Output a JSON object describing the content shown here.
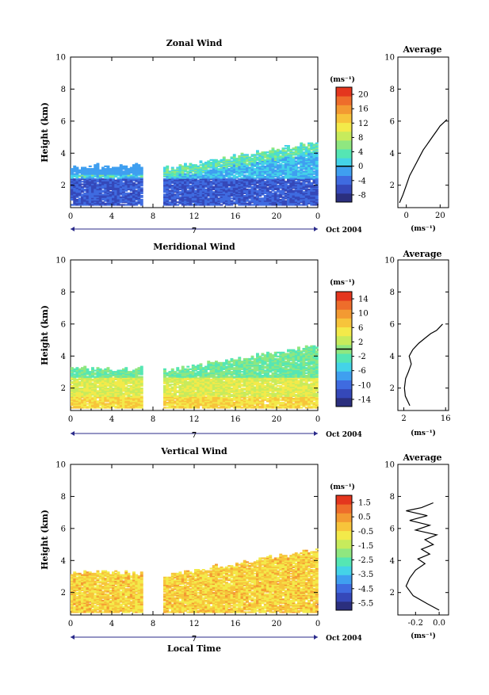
{
  "figure": {
    "xlabel": "Local Time",
    "date_label": "Oct 2004",
    "day_label": "7",
    "x_ticks": [
      "0",
      "4",
      "8",
      "12",
      "16",
      "20",
      "0"
    ],
    "y_ticks": [
      "2",
      "4",
      "6",
      "8",
      "10"
    ],
    "ylabel": "Height (km)",
    "unit_label": "(ms⁻¹)",
    "average_title": "Average"
  },
  "chart_data": [
    {
      "type": "heatmap",
      "title": "Zonal Wind",
      "xlabel": "",
      "ylabel": "Height (km)",
      "xlim": [
        0,
        24
      ],
      "ylim": [
        0.6,
        10
      ],
      "colorbar": {
        "ticks": [
          "20",
          "16",
          "12",
          "8",
          "4",
          "0",
          "-4",
          "-8"
        ],
        "range": [
          -10,
          22
        ],
        "zero_line": 0
      },
      "average_profile": {
        "title": "Average",
        "xlim": [
          -5,
          25
        ],
        "x_ticks": [
          "0",
          "20"
        ],
        "y_ticks": [
          "2",
          "4",
          "6",
          "8",
          "10"
        ],
        "x": [
          -4,
          -2,
          0,
          2,
          4,
          6,
          8,
          10,
          12,
          14,
          16,
          18,
          20,
          22,
          24
        ],
        "y": [
          0.9,
          1.4,
          2.0,
          2.6,
          3.0,
          3.4,
          3.8,
          4.2,
          4.5,
          4.8,
          5.1,
          5.4,
          5.7,
          5.9,
          6.1
        ]
      }
    },
    {
      "type": "heatmap",
      "title": "Meridional Wind",
      "xlabel": "",
      "ylabel": "Height (km)",
      "xlim": [
        0,
        24
      ],
      "ylim": [
        0.6,
        10
      ],
      "colorbar": {
        "ticks": [
          "14",
          "10",
          "6",
          "2",
          "-2",
          "-6",
          "-10",
          "-14"
        ],
        "range": [
          -16,
          16
        ],
        "zero_line": 0
      },
      "average_profile": {
        "title": "Average",
        "xlim": [
          0,
          17
        ],
        "x_ticks": [
          "2",
          "16"
        ],
        "y_ticks": [
          "2",
          "4",
          "6",
          "8",
          "10"
        ],
        "x": [
          4,
          2.5,
          2.2,
          2.6,
          3.5,
          4.5,
          3.8,
          5.0,
          7.0,
          9.0,
          11.0,
          13.0,
          14.0,
          15.0
        ],
        "y": [
          0.9,
          1.5,
          2.0,
          2.6,
          3.0,
          3.5,
          4.0,
          4.4,
          4.8,
          5.1,
          5.4,
          5.6,
          5.8,
          6.0
        ]
      }
    },
    {
      "type": "heatmap",
      "title": "Vertical Wind",
      "xlabel": "Local Time",
      "ylabel": "Height (km)",
      "xlim": [
        0,
        24
      ],
      "ylim": [
        0.6,
        10
      ],
      "colorbar": {
        "ticks": [
          "1.5",
          "0.5",
          "-0.5",
          "-1.5",
          "-2.5",
          "-3.5",
          "-4.5",
          "-5.5"
        ],
        "range": [
          -6.0,
          2.0
        ]
      },
      "average_profile": {
        "title": "Average",
        "xlim": [
          -0.35,
          0.08
        ],
        "x_ticks": [
          "-0.2",
          "0.0"
        ],
        "y_ticks": [
          "2",
          "4",
          "6",
          "8",
          "10"
        ],
        "x": [
          0.0,
          -0.1,
          -0.22,
          -0.28,
          -0.25,
          -0.2,
          -0.12,
          -0.18,
          -0.08,
          -0.15,
          -0.05,
          -0.12,
          -0.02,
          -0.2,
          -0.08,
          -0.25,
          -0.1,
          -0.28,
          -0.15,
          -0.05
        ],
        "y": [
          0.9,
          1.3,
          1.8,
          2.4,
          2.9,
          3.4,
          3.8,
          4.1,
          4.4,
          4.7,
          5.0,
          5.3,
          5.6,
          5.9,
          6.2,
          6.5,
          6.8,
          7.1,
          7.3,
          7.6
        ]
      }
    }
  ],
  "colors": {
    "palette": [
      "#2b2f7e",
      "#3548b9",
      "#3f6be0",
      "#3f9ff0",
      "#44d3e8",
      "#55e6b4",
      "#8fe780",
      "#c7eb5c",
      "#f3ea4a",
      "#f7c43b",
      "#f39a32",
      "#ee6d2b",
      "#e4361e"
    ],
    "axis": "#000000",
    "date_arrow": "#2a2a8a"
  }
}
